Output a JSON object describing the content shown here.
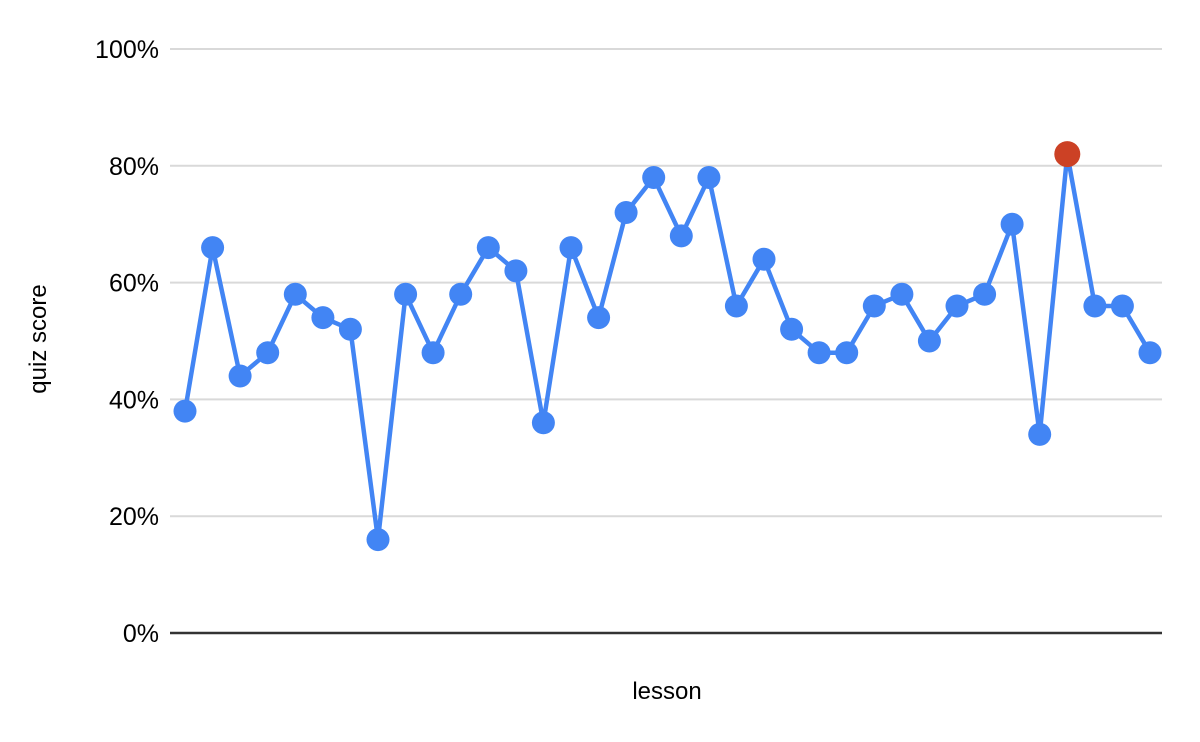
{
  "chart_data": {
    "type": "line",
    "title": "",
    "xlabel": "lesson",
    "ylabel": "quiz score",
    "ylim": [
      0,
      100
    ],
    "ytick_values": [
      0,
      20,
      40,
      60,
      80,
      100
    ],
    "ytick_labels": [
      "0%",
      "20%",
      "40%",
      "60%",
      "80%",
      "100%"
    ],
    "x_tick_labels": [],
    "grid": "horizontal",
    "legend_position": "none",
    "series": [
      {
        "name": "quiz score",
        "color": "#4285f4",
        "values": [
          38,
          66,
          44,
          48,
          58,
          54,
          52,
          16,
          58,
          48,
          58,
          66,
          62,
          36,
          66,
          54,
          72,
          78,
          68,
          78,
          56,
          64,
          52,
          48,
          48,
          56,
          58,
          50,
          56,
          58,
          70,
          34,
          82,
          56,
          56,
          48
        ]
      }
    ],
    "highlight_point": {
      "index": 32,
      "value": 82,
      "color": "#cc4125"
    }
  },
  "colors": {
    "background": "#ffffff",
    "gridline": "#d9d9d9",
    "axis_line": "#333333",
    "text": "#000000",
    "series_blue": "#4285f4",
    "highlight_red": "#cc4125"
  }
}
